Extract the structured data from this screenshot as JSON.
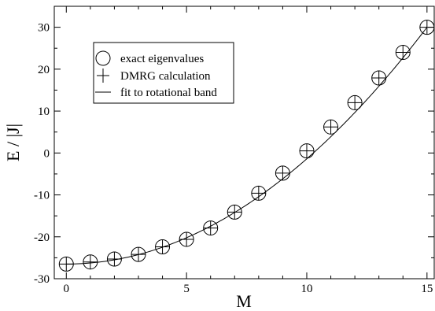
{
  "chart_data": {
    "type": "scatter",
    "xlabel": "M",
    "ylabel": "E / |J|",
    "xlim": [
      -0.5,
      15.3
    ],
    "ylim": [
      -30,
      35
    ],
    "xticks": [
      0,
      5,
      10,
      15
    ],
    "yticks": [
      -30,
      -20,
      -10,
      0,
      10,
      20,
      30
    ],
    "grid": false,
    "legend_position": "top-left",
    "series": [
      {
        "name": "exact eigenvalues",
        "marker": "circle",
        "x": [
          0,
          1,
          2,
          3,
          4,
          5,
          6,
          7,
          8,
          9,
          10,
          11,
          12,
          13,
          14,
          15
        ],
        "values": [
          -26.5,
          -26.0,
          -25.3,
          -24.2,
          -22.4,
          -20.6,
          -17.9,
          -14.1,
          -9.6,
          -4.8,
          0.5,
          6.2,
          12.0,
          17.9,
          24.0,
          30.0
        ]
      },
      {
        "name": "DMRG calculation",
        "marker": "plus",
        "x": [
          0,
          1,
          2,
          3,
          4,
          5,
          6,
          7,
          8,
          9,
          10,
          11,
          12,
          13,
          14,
          15
        ],
        "values": [
          -26.5,
          -26.0,
          -25.3,
          -24.2,
          -22.4,
          -20.6,
          -17.9,
          -14.1,
          -9.6,
          -4.8,
          0.5,
          6.2,
          12.0,
          17.9,
          24.0,
          30.0
        ]
      },
      {
        "name": "fit to rotational band",
        "marker": "line",
        "fit": {
          "form": "a + b*M^2",
          "a": -26.5,
          "b": 0.2511
        }
      }
    ]
  }
}
